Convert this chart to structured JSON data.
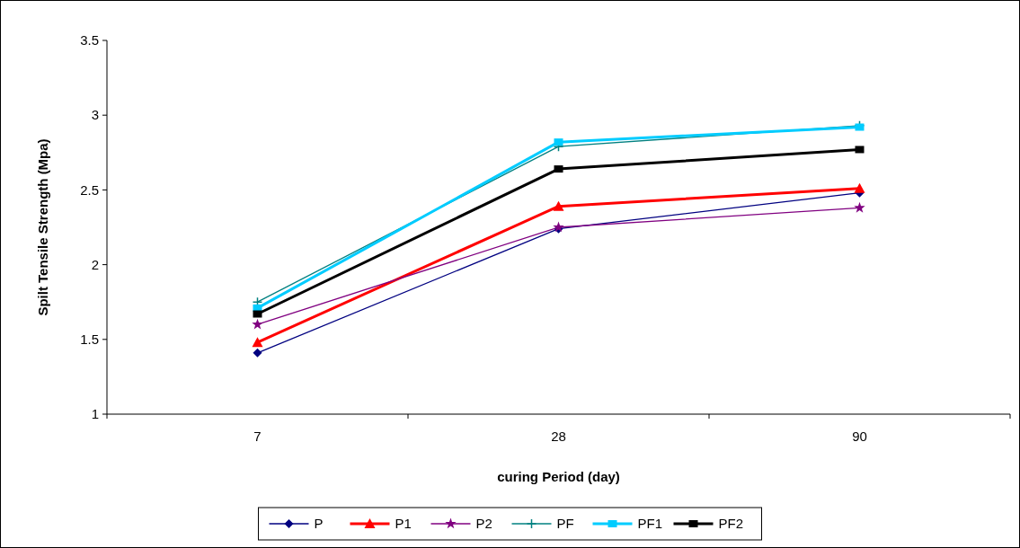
{
  "chart_data": {
    "type": "line",
    "xlabel": "curing Period (day)",
    "ylabel": "Spilt Tensile Strength (Mpa)",
    "categories": [
      "7",
      "28",
      "90"
    ],
    "series": [
      {
        "name": "P",
        "color": "#000080",
        "marker": "diamond",
        "values": [
          1.41,
          2.24,
          2.48
        ]
      },
      {
        "name": "P1",
        "color": "#ff0000",
        "marker": "triangle",
        "values": [
          1.48,
          2.39,
          2.51
        ]
      },
      {
        "name": "P2",
        "color": "#800080",
        "marker": "star",
        "values": [
          1.6,
          2.25,
          2.38
        ]
      },
      {
        "name": "PF",
        "color": "#008080",
        "marker": "cross",
        "values": [
          1.75,
          2.79,
          2.93
        ]
      },
      {
        "name": "PF1",
        "color": "#00ccff",
        "marker": "square",
        "values": [
          1.71,
          2.82,
          2.92
        ]
      },
      {
        "name": "PF2",
        "color": "#000000",
        "marker": "square",
        "values": [
          1.67,
          2.64,
          2.77
        ]
      }
    ],
    "ylim": [
      1,
      3.5
    ],
    "yticks": [
      1,
      1.5,
      2,
      2.5,
      3,
      3.5
    ],
    "grid": false,
    "legend": "bottom",
    "line_style": "solid"
  }
}
